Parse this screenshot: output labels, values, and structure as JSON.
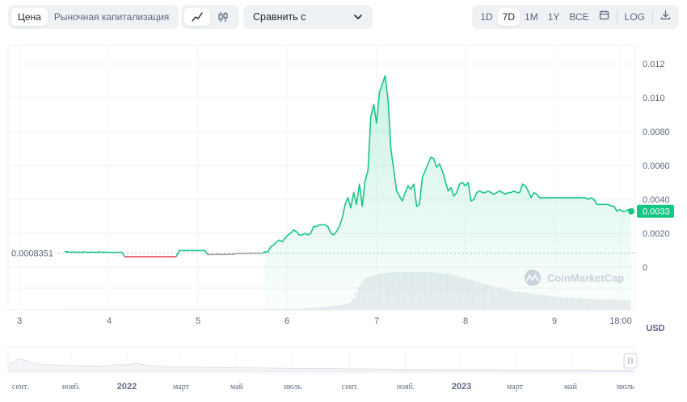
{
  "toolbar": {
    "type_tabs": [
      {
        "label": "Цена",
        "active": true
      },
      {
        "label": "Рыночная капитализация",
        "active": false
      }
    ],
    "chart_kind": [
      {
        "icon": "line-chart-icon",
        "active": true
      },
      {
        "icon": "candlestick-icon",
        "active": false
      }
    ],
    "compare_label": "Сравнить с",
    "ranges": [
      {
        "label": "1D",
        "active": false
      },
      {
        "label": "7D",
        "active": true
      },
      {
        "label": "1M",
        "active": false
      },
      {
        "label": "1Y",
        "active": false
      },
      {
        "label": "ВСЕ",
        "active": false
      }
    ],
    "log_label": "LOG"
  },
  "colors": {
    "up": "#16c784",
    "down": "#ea3943",
    "grid": "#eff2f5",
    "volume": "#e8ebef"
  },
  "watermark": "CoinMarketCap",
  "currency_label": "USD",
  "chart_data": {
    "type": "line",
    "x_ticks": [
      "3",
      "4",
      "5",
      "6",
      "7",
      "8",
      "9",
      "18:00"
    ],
    "y_ticks": [
      "0.012",
      "0.010",
      "0.0080",
      "0.0060",
      "0.0040",
      "0.0020",
      "0"
    ],
    "ylim": [
      0,
      0.0121
    ],
    "grid": true,
    "reference_value": 0.0008351,
    "reference_label": "0.0008351",
    "current_value": 0.0033,
    "current_label": "0.0033",
    "series": [
      {
        "values": [
          0.00092,
          0.00091,
          0.00088,
          0.0009,
          0.00087,
          0.00089,
          0.00088,
          0.0009,
          0.00086,
          0.00089,
          0.00088,
          0.00087,
          0.0009,
          0.00088,
          0.00089,
          0.00087,
          0.00088,
          0.00086,
          0.00088,
          0.00088,
          0.00088,
          0.00062,
          0.00062,
          0.00062,
          0.00062,
          0.00062,
          0.00062,
          0.00062,
          0.00062,
          0.00062,
          0.00062,
          0.00062,
          0.00062,
          0.00062,
          0.00062,
          0.00062,
          0.00062,
          0.00062,
          0.00062,
          0.00062,
          0.00098,
          0.00098,
          0.00098,
          0.00098,
          0.00098,
          0.00098,
          0.00098,
          0.00098,
          0.00098,
          0.00098,
          0.00075,
          0.00074,
          0.00075,
          0.00076,
          0.00075,
          0.00075,
          0.00076,
          0.00075,
          0.00076,
          0.00075,
          0.00082,
          0.00082,
          0.00082,
          0.00082,
          0.00082,
          0.00083,
          0.00082,
          0.00083,
          0.00082,
          0.00082,
          0.0009,
          0.0009,
          0.0012,
          0.0013,
          0.0015,
          0.0016,
          0.0015,
          0.0017,
          0.0019,
          0.002,
          0.0022,
          0.0021,
          0.0019,
          0.0019,
          0.002,
          0.0019,
          0.002,
          0.0024,
          0.0024,
          0.0025,
          0.0025,
          0.0025,
          0.0024,
          0.002,
          0.0019,
          0.0021,
          0.0024,
          0.0029,
          0.0037,
          0.0041,
          0.0035,
          0.0044,
          0.0037,
          0.0049,
          0.0036,
          0.0051,
          0.0057,
          0.0089,
          0.0096,
          0.0085,
          0.0103,
          0.0108,
          0.0113,
          0.0099,
          0.007,
          0.0058,
          0.0045,
          0.0042,
          0.0039,
          0.0044,
          0.0048,
          0.0046,
          0.0049,
          0.0036,
          0.0037,
          0.0053,
          0.0057,
          0.0061,
          0.0065,
          0.0064,
          0.0059,
          0.0061,
          0.0057,
          0.0051,
          0.0045,
          0.0047,
          0.0042,
          0.0044,
          0.0049,
          0.005,
          0.0048,
          0.005,
          0.0039,
          0.004,
          0.0044,
          0.0045,
          0.0044,
          0.0044,
          0.0045,
          0.0044,
          0.0043,
          0.0044,
          0.0045,
          0.0044,
          0.0043,
          0.0044,
          0.0044,
          0.0045,
          0.0044,
          0.0044,
          0.0049,
          0.0048,
          0.0045,
          0.0041,
          0.0044,
          0.0043,
          0.0041,
          0.0041,
          0.0041,
          0.0041,
          0.0041,
          0.0041,
          0.0041,
          0.0041,
          0.0041,
          0.0041,
          0.0041,
          0.0041,
          0.0041,
          0.0041,
          0.0041,
          0.0041,
          0.0041,
          0.004,
          0.0041,
          0.004,
          0.0037,
          0.0037,
          0.0037,
          0.0037,
          0.0037,
          0.0036,
          0.0036,
          0.0033,
          0.0034,
          0.0033,
          0.0033,
          0.0034,
          0.0033
        ]
      }
    ],
    "volume": [
      0.02,
      0.02,
      0.02,
      0.02,
      0.02,
      0.02,
      0.02,
      0.02,
      0.02,
      0.02,
      0.02,
      0.02,
      0.02,
      0.02,
      0.02,
      0.02,
      0.02,
      0.02,
      0.02,
      0.02,
      0.02,
      0.02,
      0.02,
      0.02,
      0.02,
      0.02,
      0.02,
      0.02,
      0.02,
      0.02,
      0.02,
      0.02,
      0.02,
      0.02,
      0.02,
      0.02,
      0.02,
      0.02,
      0.02,
      0.02,
      0.02,
      0.02,
      0.02,
      0.02,
      0.02,
      0.02,
      0.02,
      0.02,
      0.02,
      0.02,
      0.02,
      0.02,
      0.02,
      0.02,
      0.02,
      0.02,
      0.02,
      0.02,
      0.02,
      0.02,
      0.02,
      0.02,
      0.02,
      0.02,
      0.02,
      0.02,
      0.02,
      0.02,
      0.02,
      0.02,
      0.02,
      0.02,
      0.02,
      0.02,
      0.02,
      0.02,
      0.02,
      0.02,
      0.02,
      0.02,
      0.03,
      0.03,
      0.03,
      0.04,
      0.04,
      0.05,
      0.05,
      0.06,
      0.06,
      0.07,
      0.08,
      0.08,
      0.09,
      0.1,
      0.11,
      0.12,
      0.13,
      0.14,
      0.15,
      0.17,
      0.2,
      0.3,
      0.45,
      0.6,
      0.72,
      0.8,
      0.85,
      0.88,
      0.9,
      0.9,
      0.93,
      0.95,
      0.96,
      0.96,
      0.97,
      0.97,
      0.98,
      0.98,
      0.98,
      0.98,
      0.98,
      0.98,
      0.98,
      0.98,
      0.98,
      0.98,
      0.98,
      0.98,
      0.98,
      0.97,
      0.97,
      0.96,
      0.95,
      0.95,
      0.94,
      0.92,
      0.9,
      0.88,
      0.86,
      0.84,
      0.82,
      0.8,
      0.78,
      0.76,
      0.74,
      0.72,
      0.7,
      0.68,
      0.66,
      0.64,
      0.62,
      0.6,
      0.58,
      0.56,
      0.54,
      0.52,
      0.5,
      0.49,
      0.48,
      0.47,
      0.46,
      0.45,
      0.44,
      0.43,
      0.42,
      0.41,
      0.4,
      0.39,
      0.38,
      0.37,
      0.36,
      0.35,
      0.34,
      0.33,
      0.33,
      0.32,
      0.32,
      0.31,
      0.31,
      0.3,
      0.3,
      0.3,
      0.29,
      0.29,
      0.29,
      0.28,
      0.28,
      0.28,
      0.28,
      0.27,
      0.27,
      0.27,
      0.27,
      0.27,
      0.27,
      0.26,
      0.26,
      0.26,
      0.26
    ]
  },
  "navigator": {
    "labels": [
      "сент.",
      "нояб.",
      "2022",
      "март",
      "май",
      "июль",
      "сент.",
      "нояб.",
      "2023",
      "март",
      "май",
      "июль"
    ],
    "bold": [
      false,
      false,
      true,
      false,
      false,
      false,
      false,
      false,
      true,
      false,
      false,
      false
    ],
    "history": [
      0.35,
      0.55,
      0.4,
      0.3,
      0.28,
      0.26,
      0.25,
      0.24,
      0.24,
      0.23,
      0.3,
      0.28,
      0.35,
      0.26,
      0.22,
      0.2,
      0.19,
      0.18,
      0.18,
      0.17,
      0.17,
      0.16,
      0.16,
      0.15,
      0.15,
      0.14,
      0.14,
      0.13,
      0.13,
      0.12,
      0.12,
      0.12,
      0.11,
      0.11,
      0.1,
      0.1,
      0.1,
      0.09,
      0.09,
      0.09,
      0.08,
      0.08,
      0.08,
      0.07,
      0.07,
      0.07,
      0.07,
      0.06,
      0.06,
      0.06,
      0.06,
      0.05,
      0.05,
      0.05,
      0.05,
      0.05,
      0.04,
      0.04,
      0.04,
      0.04
    ]
  }
}
